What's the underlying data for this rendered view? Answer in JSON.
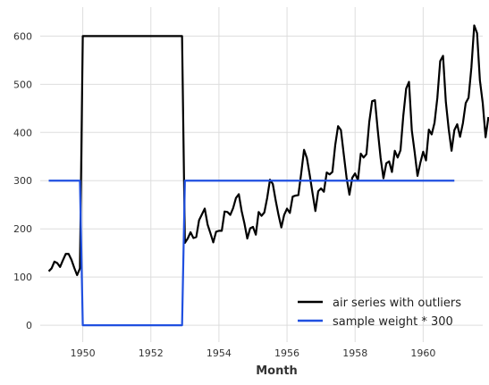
{
  "chart_data": {
    "type": "line",
    "title": "",
    "xlabel": "Month",
    "ylabel": "",
    "xlim": [
      1948.75,
      1961.75
    ],
    "ylim": [
      -35,
      660
    ],
    "xticks": [
      1950,
      1952,
      1954,
      1956,
      1958,
      1960
    ],
    "yticks": [
      0,
      100,
      200,
      300,
      400,
      500,
      600
    ],
    "grid": true,
    "legend_position": "bottom-right",
    "series": [
      {
        "name": "air series with outliers",
        "color": "#000000",
        "start": 1949.0,
        "step": 0.08333333,
        "values": [
          112,
          118,
          132,
          129,
          121,
          135,
          148,
          148,
          136,
          119,
          104,
          118,
          600,
          600,
          600,
          600,
          600,
          600,
          600,
          600,
          600,
          600,
          600,
          600,
          600,
          600,
          600,
          600,
          600,
          600,
          600,
          600,
          600,
          600,
          600,
          600,
          600,
          600,
          600,
          600,
          600,
          600,
          600,
          600,
          600,
          600,
          600,
          600,
          171,
          180,
          193,
          181,
          183,
          218,
          230,
          242,
          209,
          191,
          172,
          194,
          196,
          196,
          236,
          235,
          229,
          243,
          264,
          272,
          237,
          211,
          180,
          201,
          204,
          188,
          235,
          227,
          234,
          264,
          302,
          293,
          259,
          229,
          203,
          229,
          242,
          233,
          267,
          269,
          270,
          315,
          364,
          347,
          312,
          274,
          237,
          278,
          284,
          277,
          317,
          313,
          318,
          374,
          413,
          405,
          355,
          306,
          271,
          306,
          315,
          301,
          356,
          348,
          355,
          422,
          465,
          467,
          404,
          347,
          305,
          336,
          340,
          318,
          362,
          348,
          363,
          435,
          491,
          505,
          404,
          359,
          310,
          337,
          360,
          342,
          406,
          396,
          420,
          472,
          548,
          559,
          463,
          407,
          362,
          405,
          417,
          391,
          419,
          461,
          472,
          535,
          622,
          606,
          508,
          461,
          390,
          432
        ]
      },
      {
        "name": "sample weight * 300",
        "color": "#1f4fe0",
        "points": [
          [
            1949.0,
            300
          ],
          [
            1949.9167,
            300
          ],
          [
            1950.0,
            0
          ],
          [
            1952.9167,
            0
          ],
          [
            1953.0,
            300
          ],
          [
            1960.9167,
            300
          ]
        ]
      }
    ]
  }
}
